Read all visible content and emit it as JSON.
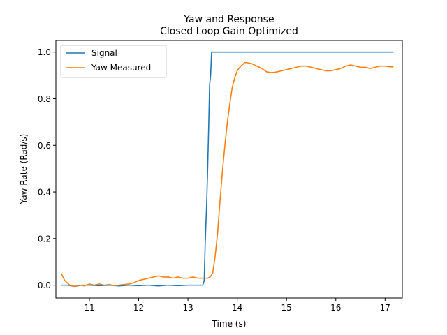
{
  "chart_data": {
    "type": "line",
    "title": [
      "Yaw and Response",
      "Closed Loop Gain Optimized"
    ],
    "xlabel": "Time (s)",
    "ylabel": "Yaw Rate (Rad/s)",
    "xlim": [
      10.32,
      17.35
    ],
    "ylim": [
      -0.055,
      1.05
    ],
    "xticks": [
      11,
      12,
      13,
      14,
      15,
      16,
      17
    ],
    "yticks": [
      0.0,
      0.2,
      0.4,
      0.6,
      0.8,
      1.0
    ],
    "xtick_labels": [
      "11",
      "12",
      "13",
      "14",
      "15",
      "16",
      "17"
    ],
    "ytick_labels": [
      "0.0",
      "0.2",
      "0.4",
      "0.6",
      "0.8",
      "1.0"
    ],
    "grid": false,
    "legend": "top-left",
    "series": [
      {
        "name": "Signal",
        "color": "#1f77b4",
        "x": [
          10.43,
          10.55,
          10.7,
          10.85,
          11.0,
          11.2,
          11.4,
          11.6,
          11.8,
          12.0,
          12.2,
          12.4,
          12.6,
          12.8,
          13.0,
          13.2,
          13.3,
          13.33,
          13.35,
          13.38,
          13.4,
          13.42,
          13.44,
          13.46,
          13.48,
          13.5,
          14.0,
          15.0,
          16.0,
          17.17
        ],
        "y": [
          0.0,
          0.0,
          -0.005,
          0.0,
          0.0,
          -0.002,
          0.0,
          -0.003,
          0.0,
          -0.002,
          0.0,
          -0.003,
          0.0,
          -0.002,
          0.0,
          0.0,
          0.0,
          0.02,
          0.18,
          0.35,
          0.5,
          0.67,
          0.86,
          0.9,
          1.0,
          1.0,
          1.0,
          1.0,
          1.0,
          1.0
        ]
      },
      {
        "name": "Yaw Measured",
        "color": "#ff7f0e",
        "x": [
          10.43,
          10.5,
          10.6,
          10.7,
          10.8,
          10.9,
          11.0,
          11.1,
          11.2,
          11.3,
          11.4,
          11.5,
          11.6,
          11.7,
          11.8,
          11.9,
          12.0,
          12.1,
          12.2,
          12.3,
          12.4,
          12.5,
          12.6,
          12.7,
          12.8,
          12.9,
          13.0,
          13.1,
          13.2,
          13.3,
          13.4,
          13.45,
          13.5,
          13.55,
          13.6,
          13.65,
          13.7,
          13.75,
          13.8,
          13.85,
          13.9,
          13.95,
          14.0,
          14.05,
          14.1,
          14.15,
          14.2,
          14.3,
          14.4,
          14.5,
          14.6,
          14.7,
          14.8,
          14.9,
          15.0,
          15.1,
          15.2,
          15.3,
          15.4,
          15.5,
          15.6,
          15.7,
          15.8,
          15.9,
          16.0,
          16.1,
          16.2,
          16.3,
          16.4,
          16.5,
          16.6,
          16.7,
          16.8,
          16.9,
          17.0,
          17.1,
          17.17
        ],
        "y": [
          0.05,
          0.02,
          0.0,
          -0.005,
          0.0,
          -0.003,
          0.005,
          0.0,
          0.005,
          0.0,
          0.003,
          -0.002,
          0.0,
          0.003,
          0.005,
          0.01,
          0.02,
          0.025,
          0.03,
          0.035,
          0.04,
          0.035,
          0.035,
          0.03,
          0.035,
          0.03,
          0.03,
          0.035,
          0.03,
          0.03,
          0.03,
          0.035,
          0.05,
          0.12,
          0.22,
          0.36,
          0.49,
          0.6,
          0.7,
          0.78,
          0.85,
          0.89,
          0.92,
          0.935,
          0.945,
          0.955,
          0.955,
          0.95,
          0.94,
          0.93,
          0.915,
          0.912,
          0.915,
          0.92,
          0.925,
          0.93,
          0.935,
          0.94,
          0.94,
          0.935,
          0.93,
          0.925,
          0.92,
          0.92,
          0.925,
          0.93,
          0.94,
          0.945,
          0.94,
          0.935,
          0.935,
          0.93,
          0.935,
          0.94,
          0.94,
          0.937,
          0.937
        ]
      }
    ]
  }
}
